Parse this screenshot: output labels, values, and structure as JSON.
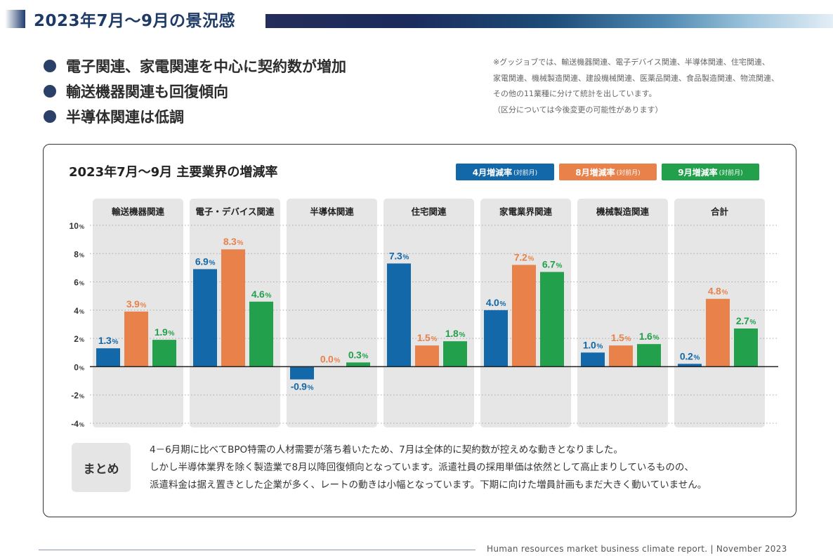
{
  "page_title": "2023年7月～9月の景況感",
  "bullets": [
    "電子関連、家電関連を中心に契約数が増加",
    "輸送機器関連も回復傾向",
    "半導体関連は低調"
  ],
  "note": [
    "※グッジョブでは、輸送機器関連、電子デバイス関連、半導体関連、住宅関連、",
    "家電関連、機械製造関連、建設機械関連、医薬品関連、食品製造関連、物流関連、",
    "その他の11業種に分けて統計を出しています。",
    "（区分については今後変更の可能性があります）"
  ],
  "colors": {
    "april": "#1268a8",
    "august": "#e8824a",
    "september": "#22a04b",
    "panel_bg": "#e6e6e6",
    "axis": "#222222"
  },
  "chart_data": {
    "type": "bar",
    "title": "2023年7月～9月 主要業界の増減率",
    "categories": [
      "輸送機器関連",
      "電子・デバイス関連",
      "半導体関連",
      "住宅関連",
      "家電業界関連",
      "機械製造関連",
      "合計"
    ],
    "series": [
      {
        "name": "4月増減率",
        "name_sub": "(対前月)",
        "values": [
          1.3,
          6.9,
          -0.9,
          7.3,
          4.0,
          1.0,
          0.2
        ]
      },
      {
        "name": "8月増減率",
        "name_sub": "(対前月)",
        "values": [
          3.9,
          8.3,
          0.0,
          1.5,
          7.2,
          1.5,
          4.8
        ]
      },
      {
        "name": "9月増減率",
        "name_sub": "(対前月)",
        "values": [
          1.9,
          4.6,
          0.3,
          1.8,
          6.7,
          1.6,
          2.7
        ]
      }
    ],
    "y_ticks": [
      10,
      8,
      6,
      4,
      2,
      0,
      -2,
      -4
    ],
    "ylim": [
      -4,
      10
    ],
    "unit": "%",
    "grid": "dotted",
    "legend": "top-right"
  },
  "summary": {
    "label": "まとめ",
    "lines": [
      "4－6月期に比べてBPO特需の人材需要が落ち着いたため、7月は全体的に契約数が控えめな動きとなりました。",
      "しかし半導体業界を除く製造業で8月以降回復傾向となっています。派遣社員の採用単価は依然として高止まりしているものの、",
      "派遣料金は据え置きとした企業が多く、レートの動きは小幅となっています。下期に向けた増員計画もまだ大きく動いていません。"
    ]
  },
  "footer": "Human resources market business climate report.  |  November 2023"
}
